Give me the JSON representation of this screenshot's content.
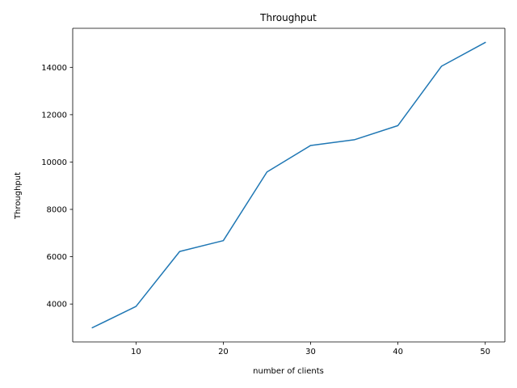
{
  "chart_data": {
    "type": "line",
    "title": "Throughput",
    "xlabel": "number of clients",
    "ylabel": "Throughput",
    "x": [
      5,
      10,
      15,
      20,
      25,
      30,
      35,
      40,
      45,
      50
    ],
    "series": [
      {
        "values": [
          3000,
          3900,
          6220,
          6680,
          9580,
          10700,
          10940,
          11540,
          14050,
          15050
        ]
      }
    ],
    "xlim": [
      2.75,
      52.25
    ],
    "ylim": [
      2400,
      15650
    ],
    "xticks": [
      10,
      20,
      30,
      40,
      50
    ],
    "yticks": [
      4000,
      6000,
      8000,
      10000,
      12000,
      14000
    ],
    "grid": false,
    "colors": {
      "line": "#1f77b4",
      "axes": "#000000",
      "background": "#ffffff"
    }
  }
}
